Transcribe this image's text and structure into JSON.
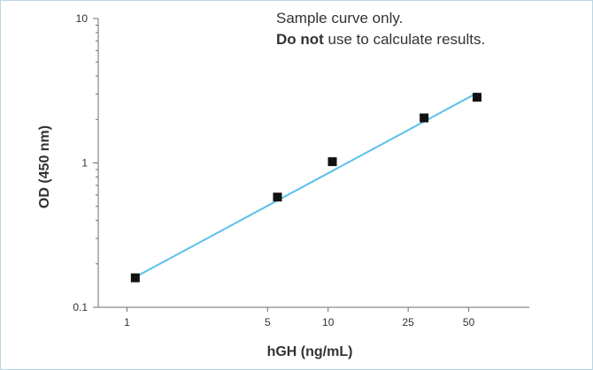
{
  "chart_data": {
    "type": "scatter",
    "xlabel": "hGH (ng/mL)",
    "ylabel": "OD (450 nm)",
    "x_scale": "log",
    "y_scale": "log",
    "xlim": [
      0.72,
      100
    ],
    "ylim": [
      0.1,
      10
    ],
    "x_ticks": [
      1,
      5,
      10,
      25,
      50
    ],
    "x_tick_labels": [
      "1",
      "5",
      "10",
      "25",
      "50"
    ],
    "y_ticks": [
      0.1,
      1,
      10
    ],
    "y_tick_labels": [
      "0.1",
      "1",
      "10"
    ],
    "grid": false,
    "series": [
      {
        "marker": "square",
        "x": [
          1.1,
          5.6,
          10.5,
          30.0,
          55.0
        ],
        "y": [
          0.16,
          0.58,
          1.02,
          2.05,
          2.85
        ]
      }
    ],
    "fit_line": {
      "x": [
        1.1,
        55.0
      ],
      "y": [
        0.162,
        3.05
      ]
    },
    "annotation": {
      "line1": "Sample curve only.",
      "line2_bold": "Do not",
      "line2_rest": " use to calculate results."
    },
    "colors": {
      "fit_line": "#5bc0eb",
      "marker": "#111111",
      "axis": "#6e6e6e",
      "frame": "#b9d6e6"
    }
  }
}
